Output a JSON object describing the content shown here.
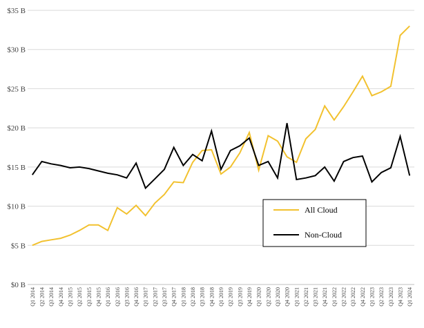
{
  "chart_data": {
    "type": "line",
    "title": "",
    "xlabel": "",
    "ylabel": "",
    "ylim": [
      0,
      35
    ],
    "ytick_labels": [
      "$0 B",
      "$5 B",
      "$10 B",
      "$15 B",
      "$20 B",
      "$25 B",
      "$30 B",
      "$35 B"
    ],
    "grid": "horizontal",
    "legend_position": "lower-right",
    "categories": [
      "Q1 2014",
      "Q2 2014",
      "Q3 2014",
      "Q4 2014",
      "Q1 2015",
      "Q2 2015",
      "Q3 2015",
      "Q4 2015",
      "Q1 2016",
      "Q2 2016",
      "Q3 2016",
      "Q4 2016",
      "Q1 2017",
      "Q2 2017",
      "Q3 2017",
      "Q4 2017",
      "Q1 2018",
      "Q2 2018",
      "Q3 2018",
      "Q4 2018",
      "Q1 2019",
      "Q2 2019",
      "Q3 2019",
      "Q4 2019",
      "Q1 2020",
      "Q2 2020",
      "Q3 2020",
      "Q4 2020",
      "Q1 2021",
      "Q2 2021",
      "Q3 2021",
      "Q4 2021",
      "Q1 2022",
      "Q2 2022",
      "Q3 2022",
      "Q4 2022",
      "Q1 2023",
      "Q2 2023",
      "Q3 2023",
      "Q4 2023",
      "Q1 2024"
    ],
    "series": [
      {
        "name": "All Cloud",
        "color": "#F2C12E",
        "values": [
          5.0,
          5.5,
          5.7,
          5.9,
          6.3,
          6.9,
          7.6,
          7.6,
          6.9,
          9.8,
          9.0,
          10.1,
          8.8,
          10.4,
          11.5,
          13.1,
          13.0,
          15.6,
          17.1,
          17.2,
          14.1,
          15.0,
          16.8,
          19.4,
          14.6,
          19.0,
          18.3,
          16.3,
          15.6,
          18.6,
          19.8,
          22.8,
          21.0,
          22.7,
          24.6,
          26.6,
          24.1,
          24.6,
          25.3,
          31.8,
          33.0
        ]
      },
      {
        "name": "Non-Cloud",
        "color": "#000000",
        "values": [
          14.0,
          15.7,
          15.4,
          15.2,
          14.9,
          15.0,
          14.8,
          14.5,
          14.2,
          14.0,
          13.6,
          15.5,
          12.3,
          13.5,
          14.7,
          17.5,
          15.2,
          16.6,
          15.8,
          19.6,
          14.7,
          17.1,
          17.7,
          18.7,
          15.2,
          15.7,
          13.6,
          20.6,
          13.4,
          13.6,
          13.9,
          15.0,
          13.2,
          15.7,
          16.2,
          16.4,
          13.1,
          14.3,
          14.9,
          18.9,
          13.9
        ]
      }
    ]
  }
}
